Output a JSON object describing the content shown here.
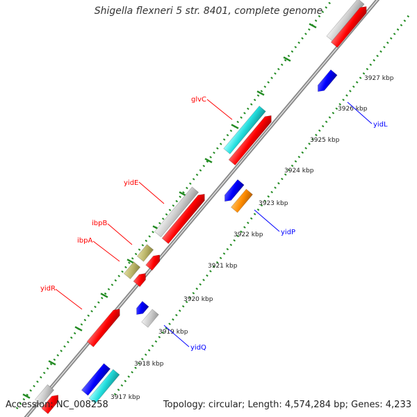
{
  "title": "Shigella flexneri 5 str. 8401, complete genome",
  "footer": {
    "accession": "Accession: NC_008258",
    "topology": "Topology: circular; Length: 4,574,284 bp; Genes: 4,233"
  },
  "colors": {
    "backbone": "#777777",
    "tick": "#228b22",
    "red": "#ff0000",
    "gray": "#cccccc",
    "cyan": "#22dddd",
    "khaki": "#bdb76b",
    "blue": "#0000ff",
    "orange": "#ff8c00",
    "label_top": "#ff0000",
    "label_bottom": "#0000ff"
  },
  "scale_labels": [
    "3917 kbp",
    "3918 kbp",
    "3919 kbp",
    "3920 kbp",
    "3921 kbp",
    "3922 kbp",
    "3923 kbp",
    "3924 kbp",
    "3925 kbp",
    "3926 kbp",
    "3927 kbp"
  ],
  "gene_labels_top": [
    "glvC",
    "yidE",
    "ibpB",
    "ibpA",
    "yidR"
  ],
  "gene_labels_bottom": [
    "yidL",
    "yidP",
    "yidQ"
  ]
}
